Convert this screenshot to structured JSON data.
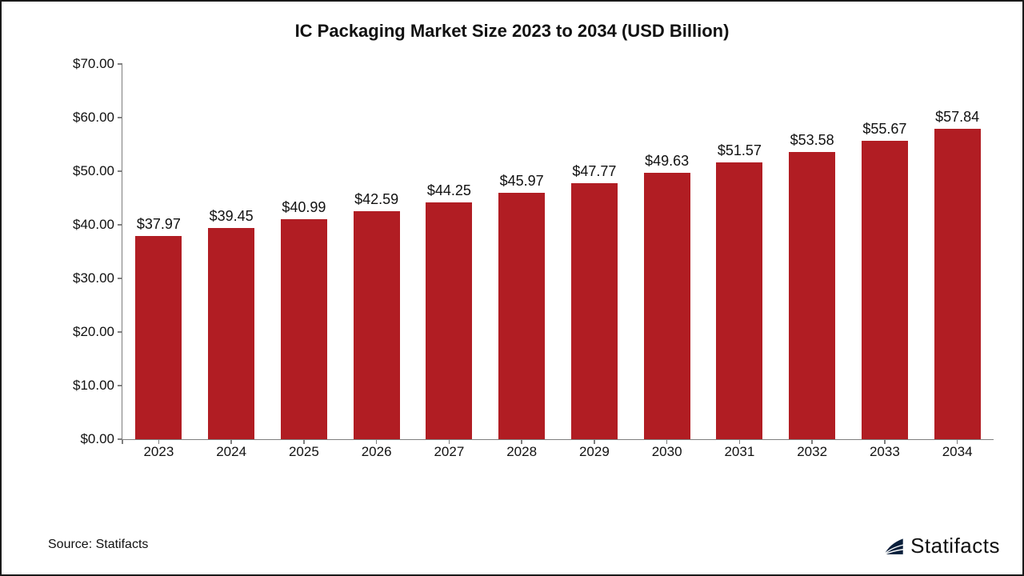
{
  "chart": {
    "type": "bar",
    "title": "IC Packaging Market Size 2023 to 2034 (USD Billion)",
    "title_fontsize": 22,
    "title_fontweight": 700,
    "title_color": "#111111",
    "categories": [
      "2023",
      "2024",
      "2025",
      "2026",
      "2027",
      "2028",
      "2029",
      "2030",
      "2031",
      "2032",
      "2033",
      "2034"
    ],
    "values": [
      37.97,
      39.45,
      40.99,
      42.59,
      44.25,
      45.97,
      47.77,
      49.63,
      51.57,
      53.58,
      55.67,
      57.84
    ],
    "data_label_prefix": "$",
    "data_label_decimals": 2,
    "bar_color": "#b11d23",
    "bar_width_ratio": 0.64,
    "ylim": [
      0,
      70
    ],
    "ytick_step": 10,
    "ytick_prefix": "$",
    "ytick_decimals": 2,
    "axis_color": "#7f7f7f",
    "tick_color": "#7f7f7f",
    "label_fontsize": 17,
    "data_label_fontsize": 18,
    "label_color": "#111111",
    "background_color": "#ffffff",
    "border_color": "#1a1a1a"
  },
  "source": {
    "text": "Source: Statifacts"
  },
  "brand": {
    "name": "Statifacts",
    "icon_color": "#0a1f3b"
  }
}
